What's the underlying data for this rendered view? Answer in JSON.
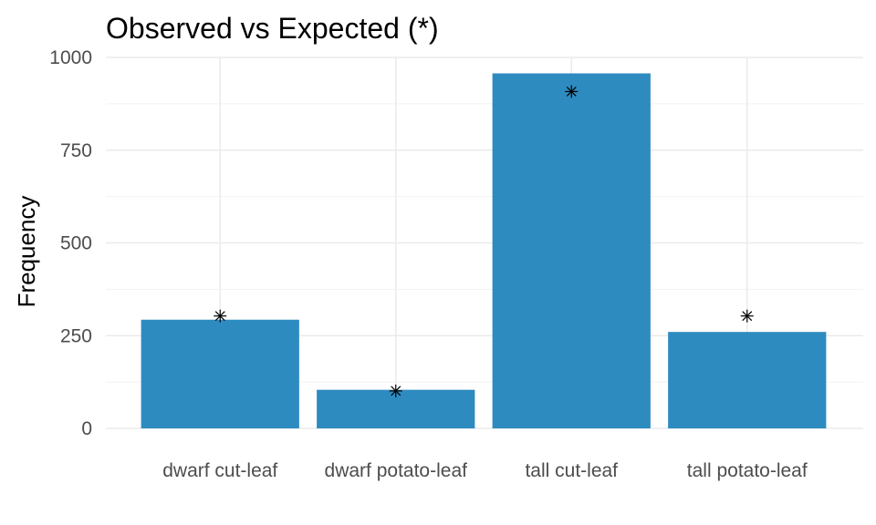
{
  "chart_data": {
    "type": "bar",
    "title": "Observed vs Expected (*)",
    "xlabel": "",
    "ylabel": "Frequency",
    "categories": [
      "dwarf cut-leaf",
      "dwarf potato-leaf",
      "tall cut-leaf",
      "tall potato-leaf"
    ],
    "series": [
      {
        "name": "",
        "values": [
          293,
          104,
          957,
          260
        ]
      },
      {
        "name": "",
        "values": [
          303,
          101,
          908,
          303
        ]
      }
    ],
    "ylim": [
      0,
      1000
    ],
    "yticks": [
      0,
      250,
      500,
      750,
      1000
    ],
    "grid": true,
    "colors": {
      "bar": "#2e8bc0",
      "marker": "#000000"
    }
  }
}
